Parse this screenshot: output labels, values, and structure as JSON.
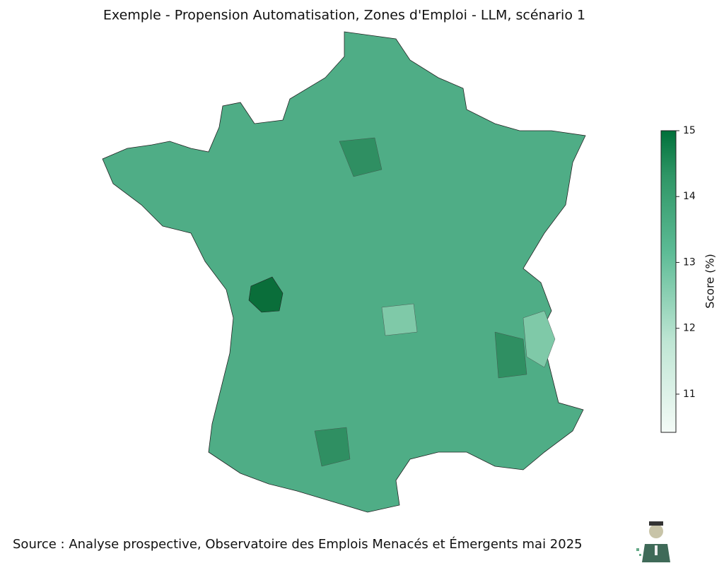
{
  "title": "Exemple - Propension Automatisation, Zones d'Emploi - LLM, scénario 1",
  "colorbar": {
    "label": "Score (%)",
    "lim": [
      10.42,
      15
    ],
    "ticks": [
      11,
      12,
      13,
      14,
      15
    ],
    "colors": [
      "#f7fcf5",
      "#c7e9c0",
      "#74c476",
      "#41ab5d",
      "#00703a"
    ]
  },
  "source": "Source : Analyse prospective, Observatoire des Emplois Menacés et Émergents mai 2025"
}
